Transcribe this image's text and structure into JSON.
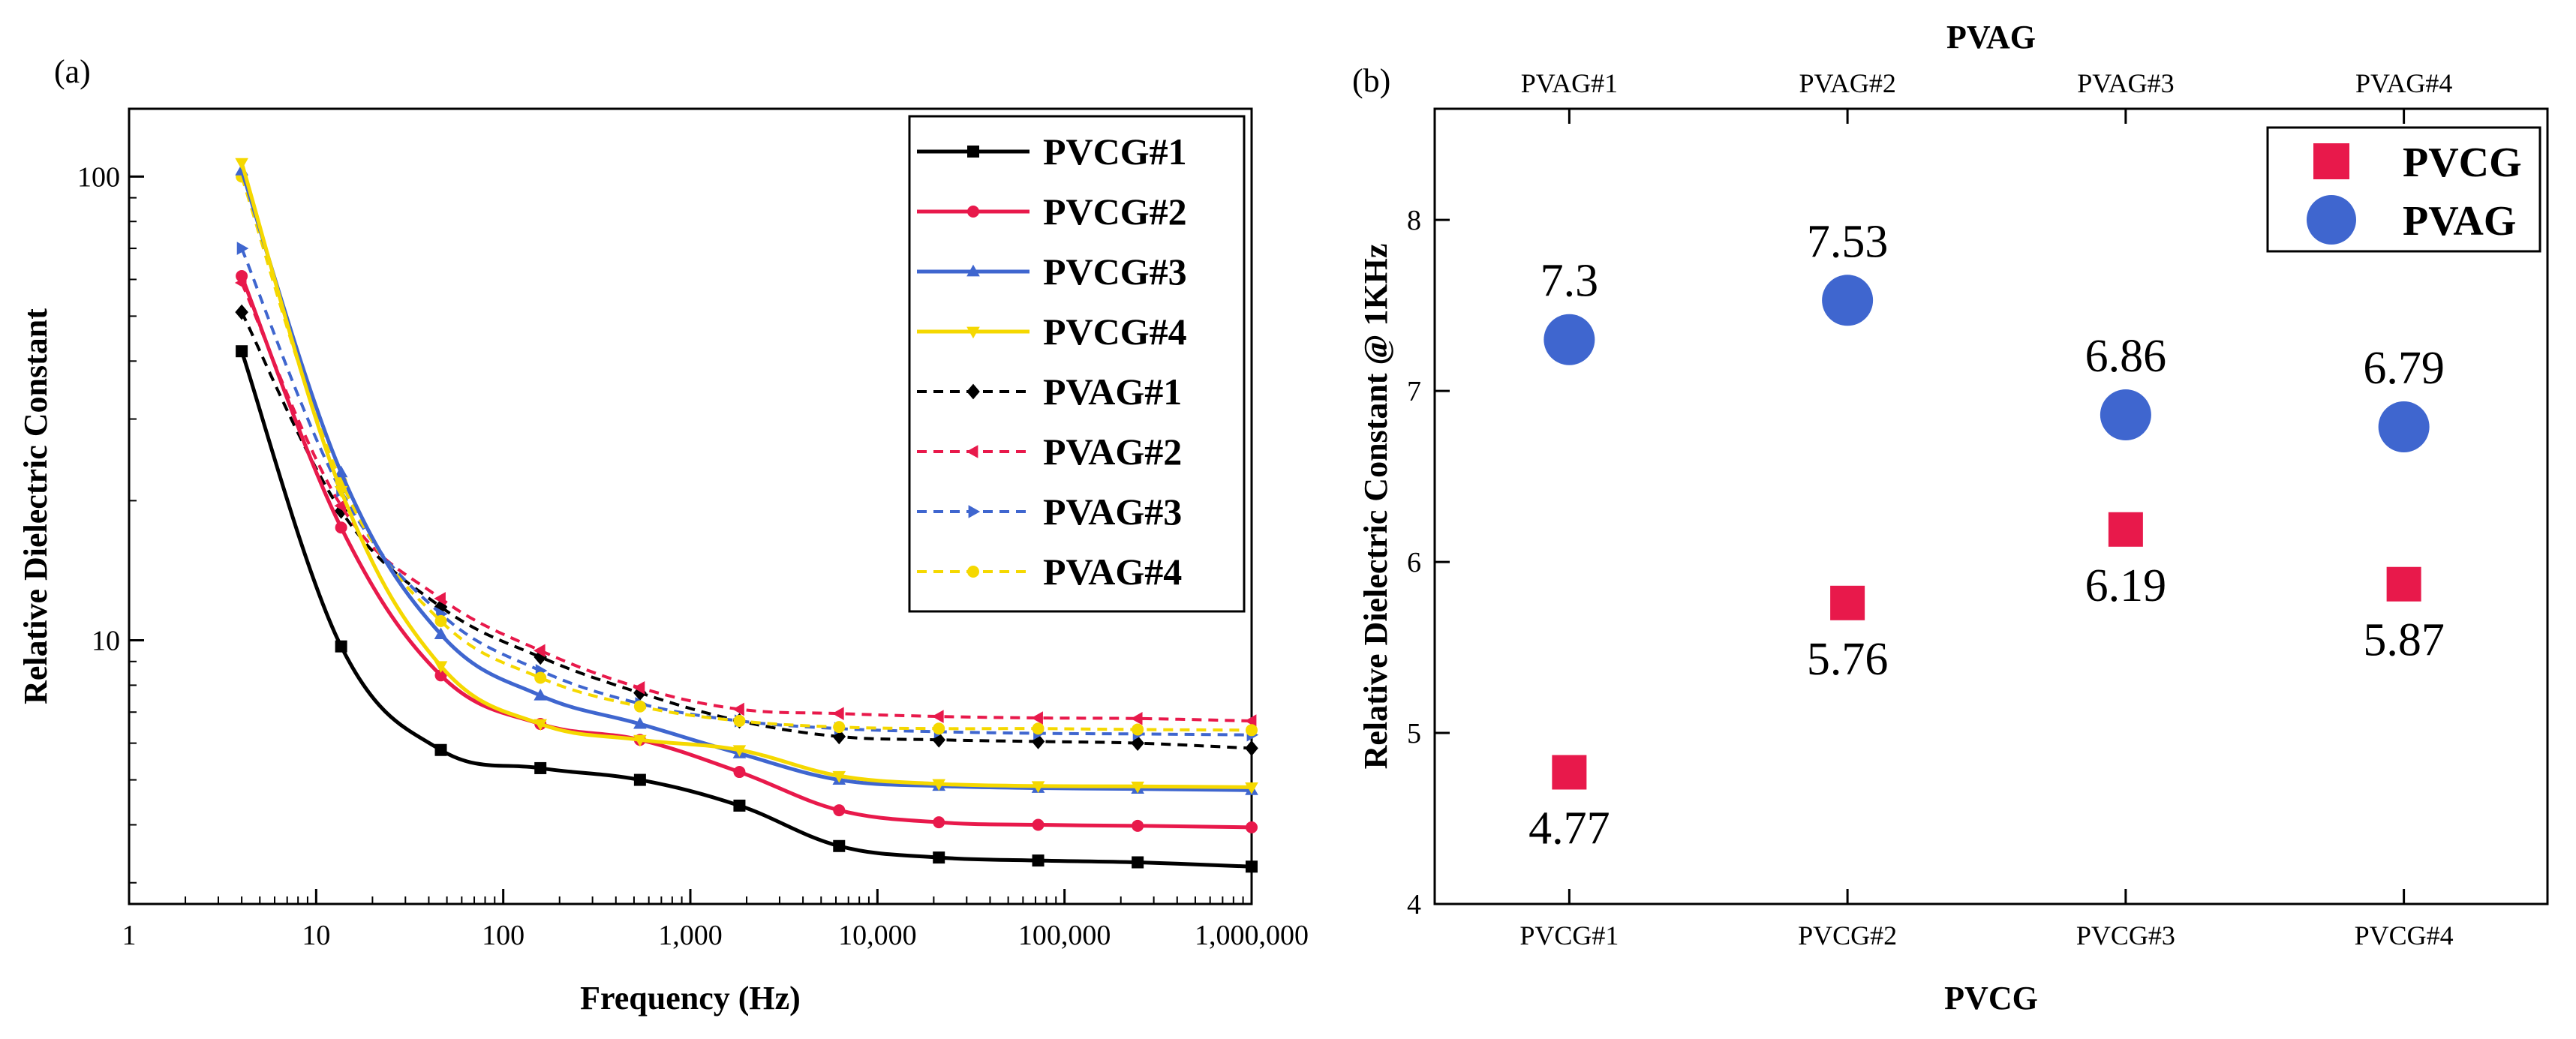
{
  "chart_data": [
    {
      "panel": "(a)",
      "type": "line",
      "xscale": "log",
      "yscale": "log",
      "xlabel": "Frequency (Hz)",
      "ylabel": "Relative Dielectric Constant",
      "xlim": [
        1,
        1000000
      ],
      "ylim": [
        2.7,
        140
      ],
      "xticks": [
        1,
        10,
        100,
        1000,
        10000,
        100000,
        1000000
      ],
      "xtick_labels": [
        "1",
        "10",
        "100",
        "1,000",
        "10,000",
        "100,000",
        "1,000,000"
      ],
      "yticks": [
        10,
        100
      ],
      "ytick_labels": [
        "10",
        "100"
      ],
      "legend_position": "top-right",
      "x": [
        4,
        13.6,
        46.4,
        158,
        538,
        1830,
        6240,
        21300,
        72300,
        246000,
        1000000
      ],
      "series": [
        {
          "name": "PVCG#1",
          "color": "#000000",
          "dash": "solid",
          "marker": "square",
          "values": [
            42,
            9.7,
            5.8,
            5.3,
            5.0,
            4.4,
            3.6,
            3.4,
            3.35,
            3.32,
            3.25
          ]
        },
        {
          "name": "PVCG#2",
          "color": "#e8194b",
          "dash": "solid",
          "marker": "circle",
          "values": [
            61,
            17.5,
            8.4,
            6.6,
            6.1,
            5.2,
            4.3,
            4.05,
            4.0,
            3.98,
            3.95
          ]
        },
        {
          "name": "PVCG#3",
          "color": "#3f66cf",
          "dash": "solid",
          "marker": "triangle-up",
          "values": [
            103,
            23,
            10.3,
            7.6,
            6.6,
            5.7,
            5.0,
            4.85,
            4.8,
            4.78,
            4.75
          ]
        },
        {
          "name": "PVCG#4",
          "color": "#f5d800",
          "dash": "solid",
          "marker": "triangle-down",
          "values": [
            107,
            21,
            8.8,
            6.6,
            6.1,
            5.8,
            5.1,
            4.9,
            4.85,
            4.84,
            4.82
          ]
        },
        {
          "name": "PVAG#1",
          "color": "#000000",
          "dash": "dashed",
          "marker": "diamond",
          "values": [
            51,
            19,
            11.8,
            9.2,
            7.7,
            6.7,
            6.2,
            6.1,
            6.05,
            6.0,
            5.85
          ]
        },
        {
          "name": "PVAG#2",
          "color": "#e8194b",
          "dash": "dashed",
          "marker": "triangle-left",
          "values": [
            59,
            19.5,
            12.3,
            9.5,
            7.9,
            7.1,
            6.95,
            6.85,
            6.8,
            6.78,
            6.7
          ]
        },
        {
          "name": "PVAG#3",
          "color": "#3f66cf",
          "dash": "dashed",
          "marker": "triangle-right",
          "values": [
            70,
            21,
            11.4,
            8.6,
            7.3,
            6.7,
            6.45,
            6.35,
            6.3,
            6.28,
            6.25
          ]
        },
        {
          "name": "PVAG#4",
          "color": "#f5d800",
          "dash": "dashed",
          "marker": "circle",
          "values": [
            100,
            22,
            11.0,
            8.3,
            7.2,
            6.7,
            6.5,
            6.45,
            6.45,
            6.42,
            6.4
          ]
        }
      ]
    },
    {
      "panel": "(b)",
      "type": "scatter",
      "ylabel": "Relative Dielectric Constant @ 1KHz",
      "xlabel_bottom": "PVCG",
      "xlabel_top": "PVAG",
      "bottom_categories": [
        "PVCG#1",
        "PVCG#2",
        "PVCG#3",
        "PVCG#4"
      ],
      "top_categories": [
        "PVAG#1",
        "PVAG#2",
        "PVAG#3",
        "PVAG#4"
      ],
      "ylim": [
        4,
        8.65
      ],
      "yticks": [
        4,
        5,
        6,
        7,
        8
      ],
      "ytick_labels": [
        "4",
        "5",
        "6",
        "7",
        "8"
      ],
      "legend_position": "top-right",
      "series": [
        {
          "name": "PVCG",
          "color": "#e8194b",
          "marker": "square",
          "values": [
            4.77,
            5.76,
            6.19,
            5.87
          ],
          "labels": [
            "4.77",
            "5.76",
            "6.19",
            "5.87"
          ]
        },
        {
          "name": "PVAG",
          "color": "#3f66cf",
          "marker": "circle",
          "values": [
            7.3,
            7.53,
            6.86,
            6.79
          ],
          "labels": [
            "7.3",
            "7.53",
            "6.86",
            "6.79"
          ]
        }
      ]
    }
  ]
}
